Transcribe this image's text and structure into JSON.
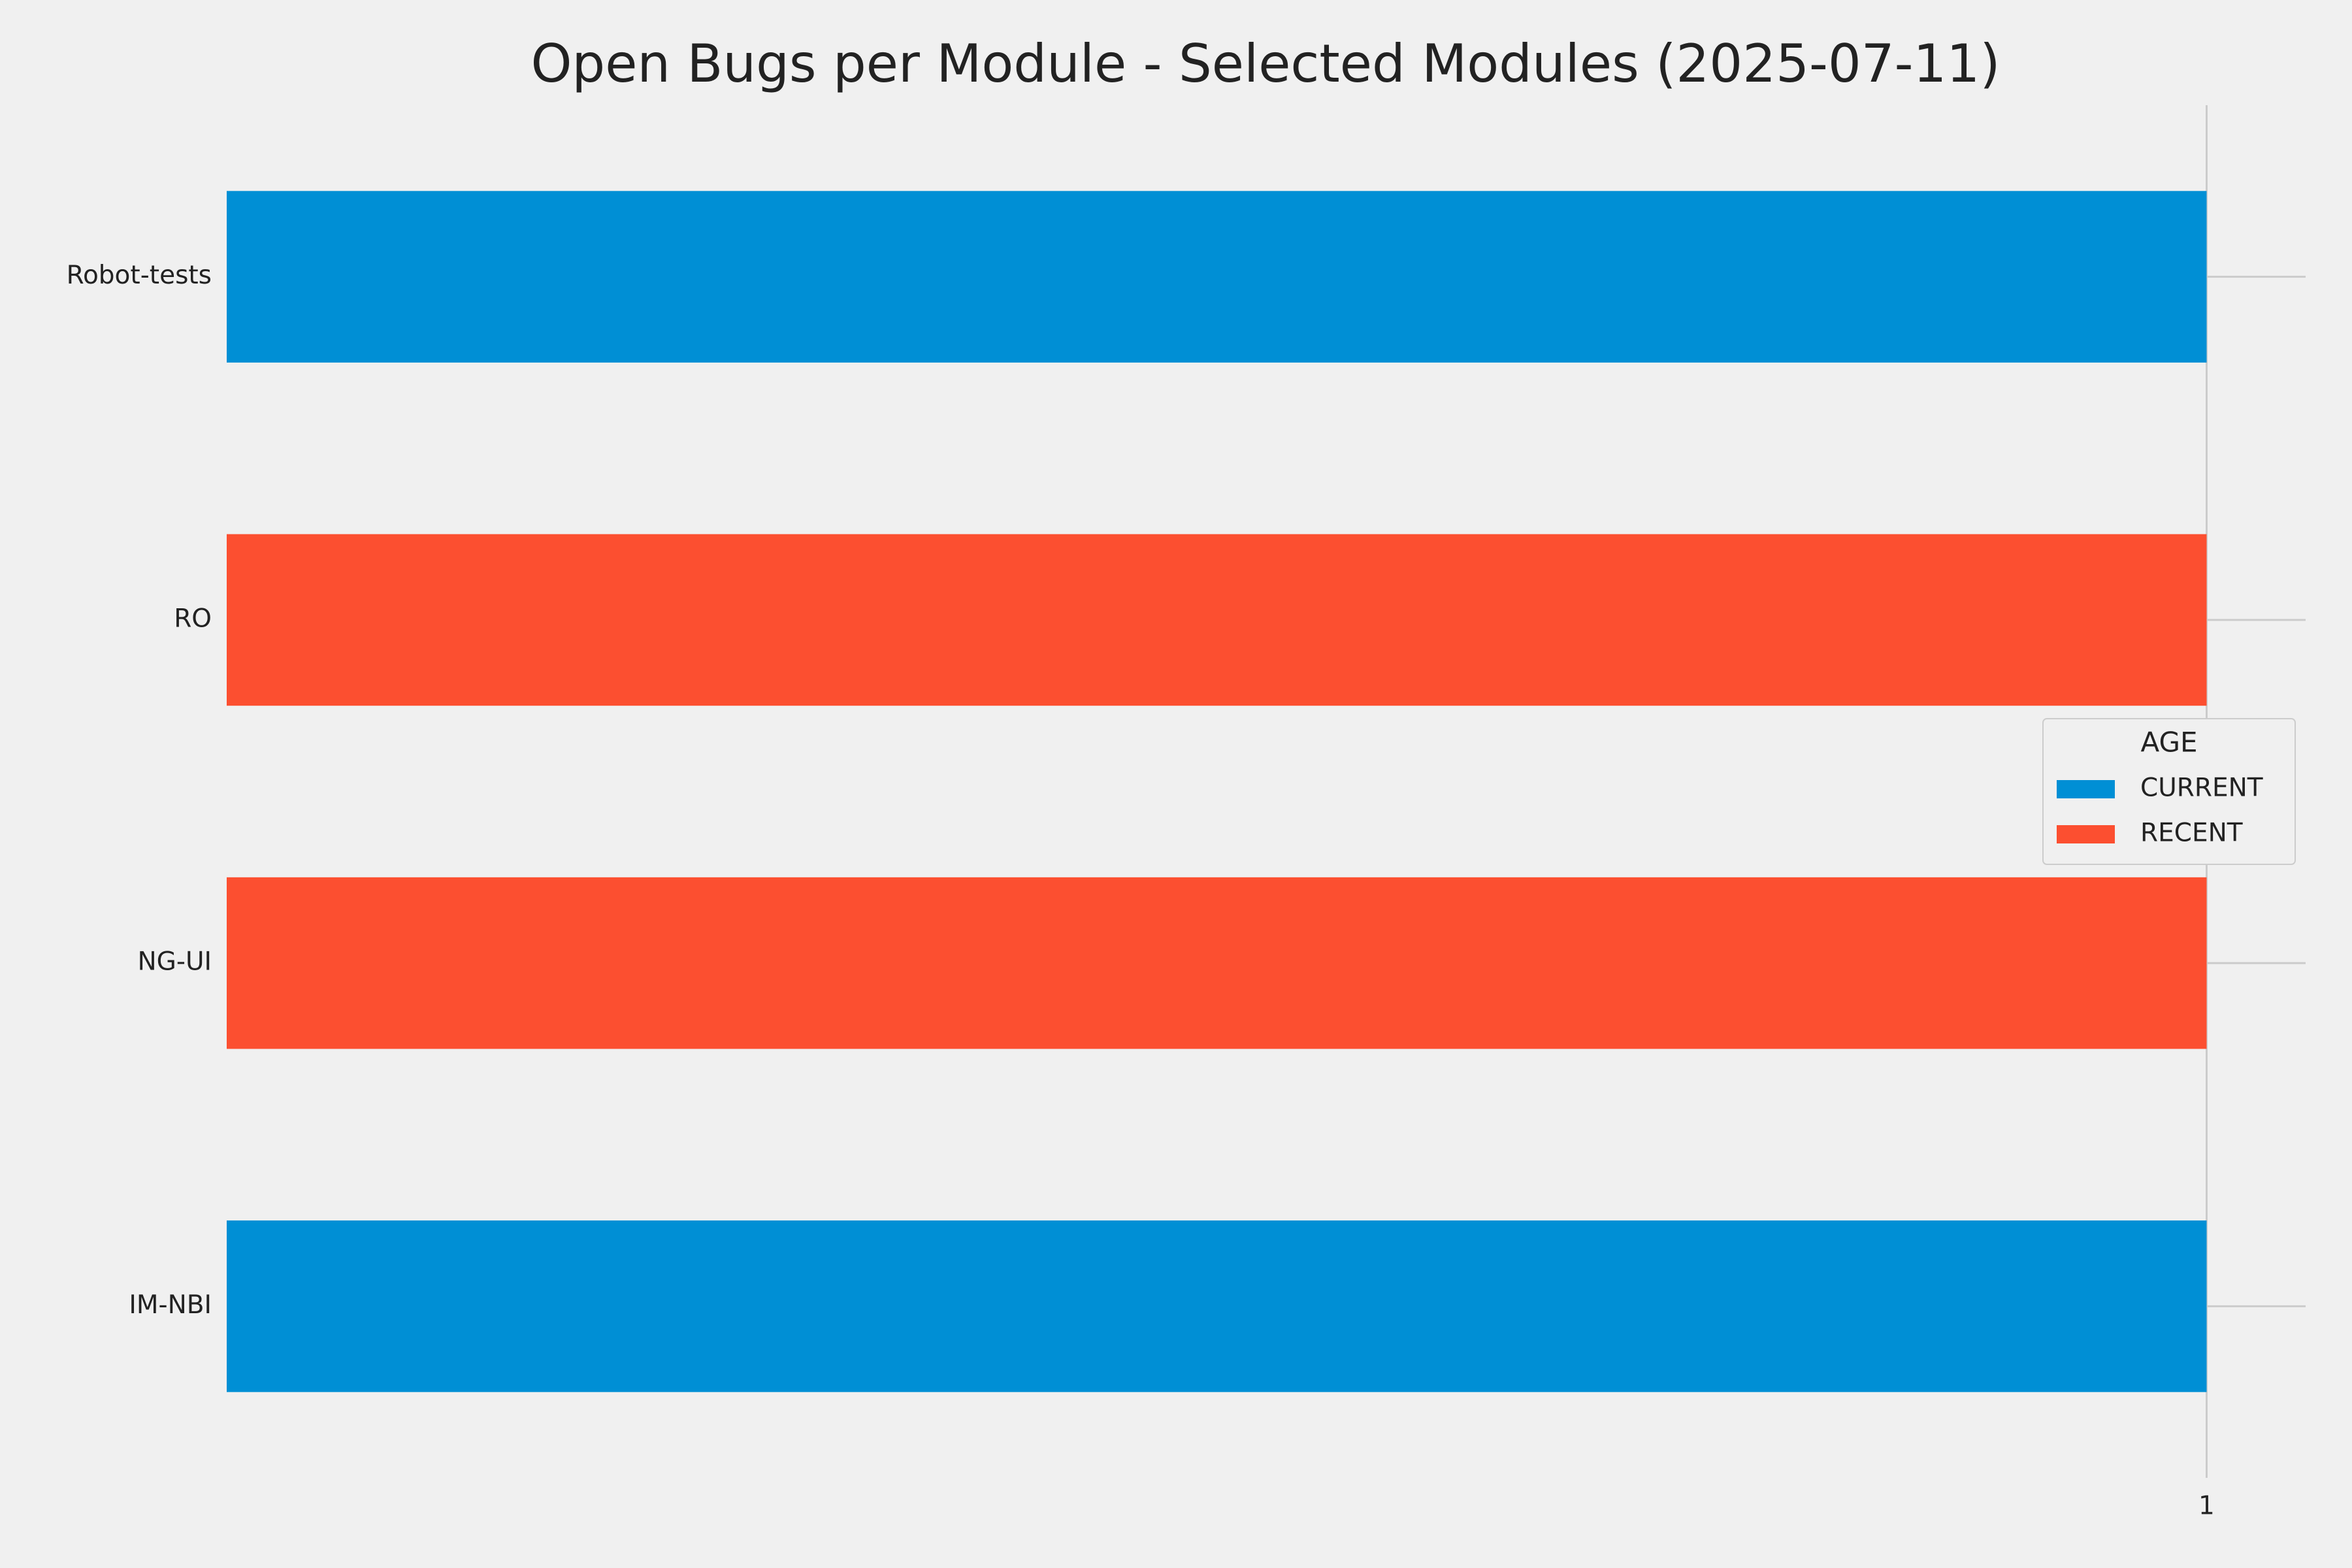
{
  "chart_data": {
    "type": "barh_stacked",
    "title": "Open Bugs per Module - Selected Modules (2025-07-11)",
    "categories": [
      "IM-NBI",
      "NG-UI",
      "RO",
      "Robot-tests"
    ],
    "series": [
      {
        "name": "CURRENT",
        "color": "#008fd5",
        "values": [
          1,
          0,
          0,
          1
        ]
      },
      {
        "name": "RECENT",
        "color": "#fc4f30",
        "values": [
          0,
          1,
          1,
          0
        ]
      }
    ],
    "legend_title": "AGE",
    "legend_position": "center right",
    "xlim": [
      0,
      1.05
    ],
    "xticks": [
      1
    ],
    "grid": true
  }
}
